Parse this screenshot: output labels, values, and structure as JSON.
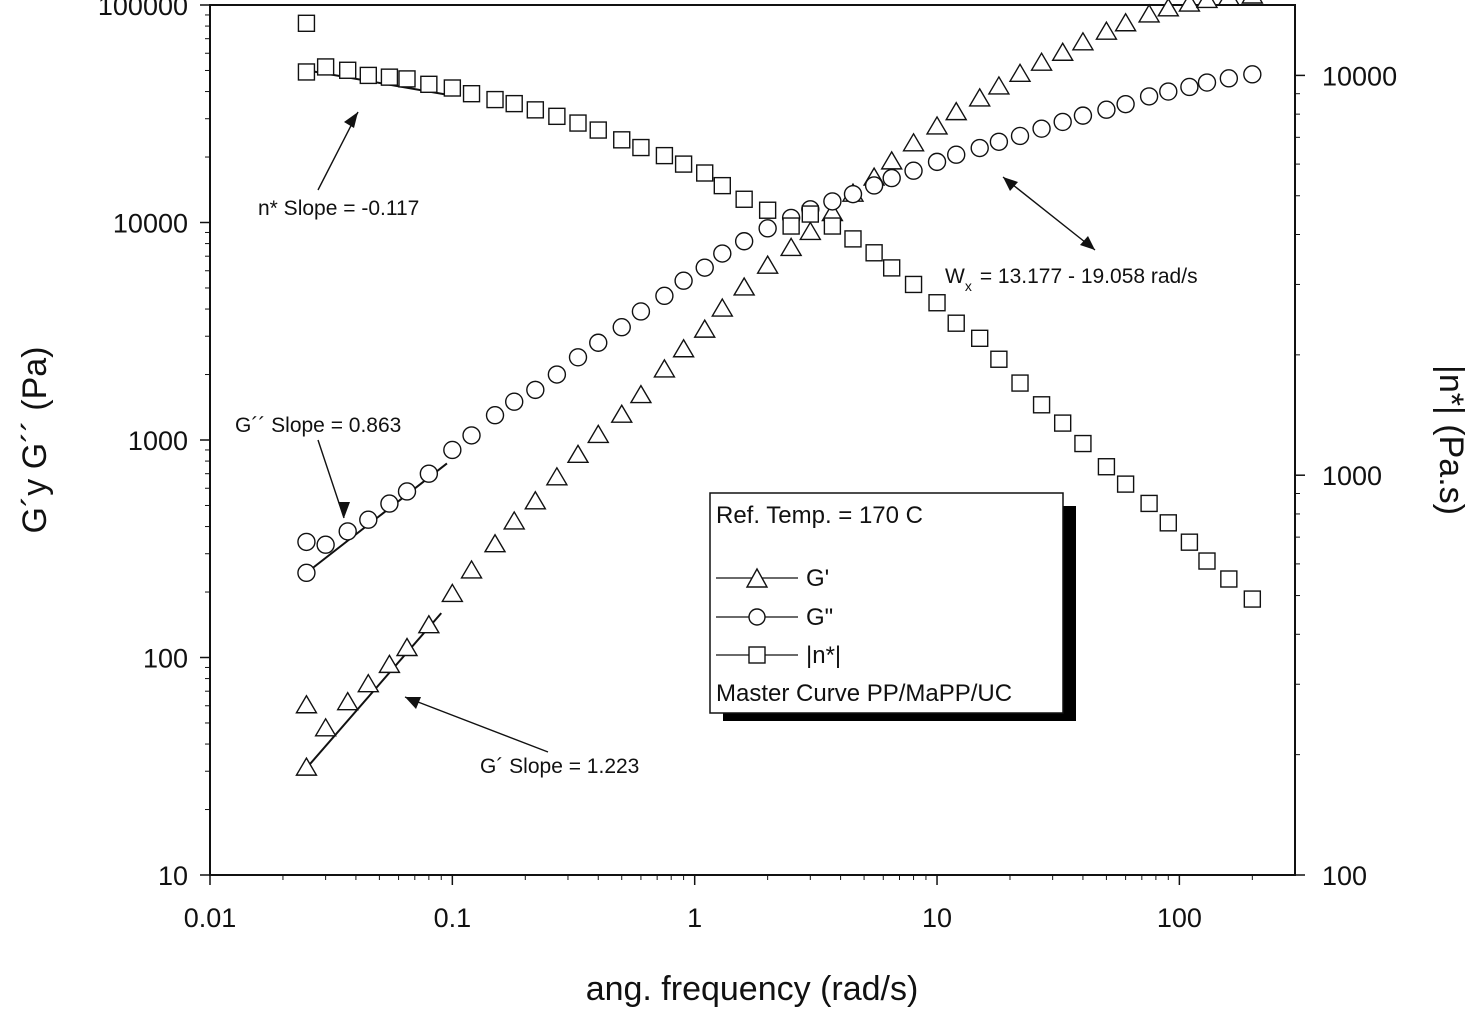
{
  "chart_data": {
    "type": "scatter",
    "xlabel": "ang. frequency (rad/s)",
    "ylabel": "G´y G´´ (Pa)",
    "y2label": "|n*| (Pa.s)",
    "x_scale": "log",
    "y_scale": "log",
    "y2_scale": "log",
    "xlim": [
      0.01,
      300
    ],
    "ylim": [
      10,
      100000
    ],
    "y2lim": [
      100,
      15000
    ],
    "x_ticks": [
      "0.01",
      "0.1",
      "1",
      "10",
      "100"
    ],
    "y_ticks": [
      "10",
      "100",
      "1000",
      "10000",
      "100000"
    ],
    "y2_ticks": [
      "100",
      "1000",
      "10000"
    ],
    "grid": false,
    "legend": {
      "title": "Ref. Temp. = 170 C",
      "entries": [
        "G'",
        "G\"",
        "|n*|"
      ],
      "footer": "Master Curve PP/MaPP/UC",
      "placement": "lower-center"
    },
    "annotations": {
      "eta_slope": "n* Slope = -0.117",
      "gpp_slope": "G´´ Slope = 0.863",
      "gp_slope": "G´ Slope = 1.223",
      "wx_prefix": "W",
      "wx_sub": "x",
      "wx_text": "= 13.177 - 19.058 rad/s"
    },
    "series": [
      {
        "name": "G'",
        "marker": "triangle",
        "axis": "left",
        "x": [
          0.025,
          0.025,
          0.03,
          0.037,
          0.045,
          0.055,
          0.065,
          0.08,
          0.1,
          0.12,
          0.15,
          0.18,
          0.22,
          0.27,
          0.33,
          0.4,
          0.5,
          0.6,
          0.75,
          0.9,
          1.1,
          1.3,
          1.6,
          2.0,
          2.5,
          3.0,
          3.7,
          4.5,
          5.5,
          6.5,
          8.0,
          10,
          12,
          15,
          18,
          22,
          27,
          33,
          40,
          50,
          60,
          75,
          90,
          110,
          130,
          160,
          200
        ],
        "y": [
          60,
          31,
          47,
          62,
          75,
          92,
          110,
          140,
          195,
          250,
          330,
          420,
          520,
          670,
          850,
          1050,
          1300,
          1600,
          2100,
          2600,
          3200,
          4000,
          5000,
          6300,
          7600,
          9000,
          11000,
          13500,
          16000,
          19000,
          23000,
          27500,
          32000,
          37000,
          42000,
          48000,
          54000,
          60000,
          67000,
          75000,
          82000,
          90000,
          96000,
          101000,
          105000,
          108000,
          110000
        ]
      },
      {
        "name": "G\"",
        "marker": "circle",
        "axis": "left",
        "x": [
          0.025,
          0.025,
          0.03,
          0.037,
          0.045,
          0.055,
          0.065,
          0.08,
          0.1,
          0.12,
          0.15,
          0.18,
          0.22,
          0.27,
          0.33,
          0.4,
          0.5,
          0.6,
          0.75,
          0.9,
          1.1,
          1.3,
          1.6,
          2.0,
          2.5,
          3.0,
          3.7,
          4.5,
          5.5,
          6.5,
          8.0,
          10,
          12,
          15,
          18,
          22,
          27,
          33,
          40,
          50,
          60,
          75,
          90,
          110,
          130,
          160,
          200
        ],
        "y": [
          245,
          340,
          330,
          380,
          430,
          510,
          580,
          700,
          900,
          1050,
          1300,
          1500,
          1700,
          2000,
          2400,
          2800,
          3300,
          3900,
          4600,
          5400,
          6200,
          7200,
          8200,
          9400,
          10500,
          11500,
          12500,
          13500,
          14800,
          16000,
          17300,
          19000,
          20500,
          22000,
          23500,
          25000,
          27000,
          29000,
          31000,
          33000,
          35000,
          38000,
          40000,
          42000,
          44000,
          46000,
          48000
        ]
      },
      {
        "name": "|n*|",
        "marker": "square",
        "axis": "right",
        "x": [
          0.025,
          0.025,
          0.03,
          0.037,
          0.045,
          0.055,
          0.065,
          0.08,
          0.1,
          0.12,
          0.15,
          0.18,
          0.22,
          0.27,
          0.33,
          0.4,
          0.5,
          0.6,
          0.75,
          0.9,
          1.1,
          1.3,
          1.6,
          2.0,
          2.5,
          3.0,
          3.7,
          4.5,
          5.5,
          6.5,
          8.0,
          10,
          12,
          15,
          18,
          22,
          27,
          33,
          40,
          50,
          60,
          75,
          90,
          110,
          130,
          160,
          200
        ],
        "y": [
          13500,
          10200,
          10500,
          10300,
          10000,
          9900,
          9800,
          9500,
          9300,
          9000,
          8700,
          8500,
          8200,
          7900,
          7600,
          7300,
          6900,
          6600,
          6300,
          6000,
          5700,
          5300,
          4900,
          4600,
          4200,
          4500,
          4200,
          3900,
          3600,
          3300,
          3000,
          2700,
          2400,
          2200,
          1950,
          1700,
          1500,
          1350,
          1200,
          1050,
          950,
          850,
          760,
          680,
          610,
          550,
          490
        ]
      }
    ]
  }
}
